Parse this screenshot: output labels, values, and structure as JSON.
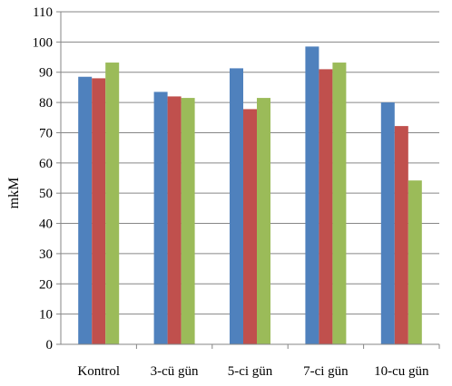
{
  "chart_data": {
    "type": "bar",
    "title": "",
    "xlabel": "",
    "ylabel": "mkM",
    "categories": [
      "Kontrol",
      "3-cü gün",
      "5-ci gün",
      "7-ci gün",
      "10-cu gün"
    ],
    "series": [
      {
        "color": "#4F81BD",
        "values": [
          88.5,
          83.5,
          91.3,
          98.5,
          80
        ]
      },
      {
        "color": "#C0504D",
        "values": [
          88,
          82,
          77.8,
          91,
          72.2
        ]
      },
      {
        "color": "#9BBB59",
        "values": [
          93.2,
          81.5,
          81.5,
          93.2,
          54.2
        ]
      }
    ],
    "ylim": [
      0,
      110
    ],
    "yticks": [
      0,
      10,
      20,
      30,
      40,
      50,
      60,
      70,
      80,
      90,
      100,
      110
    ],
    "grid": true,
    "legend": "none"
  }
}
